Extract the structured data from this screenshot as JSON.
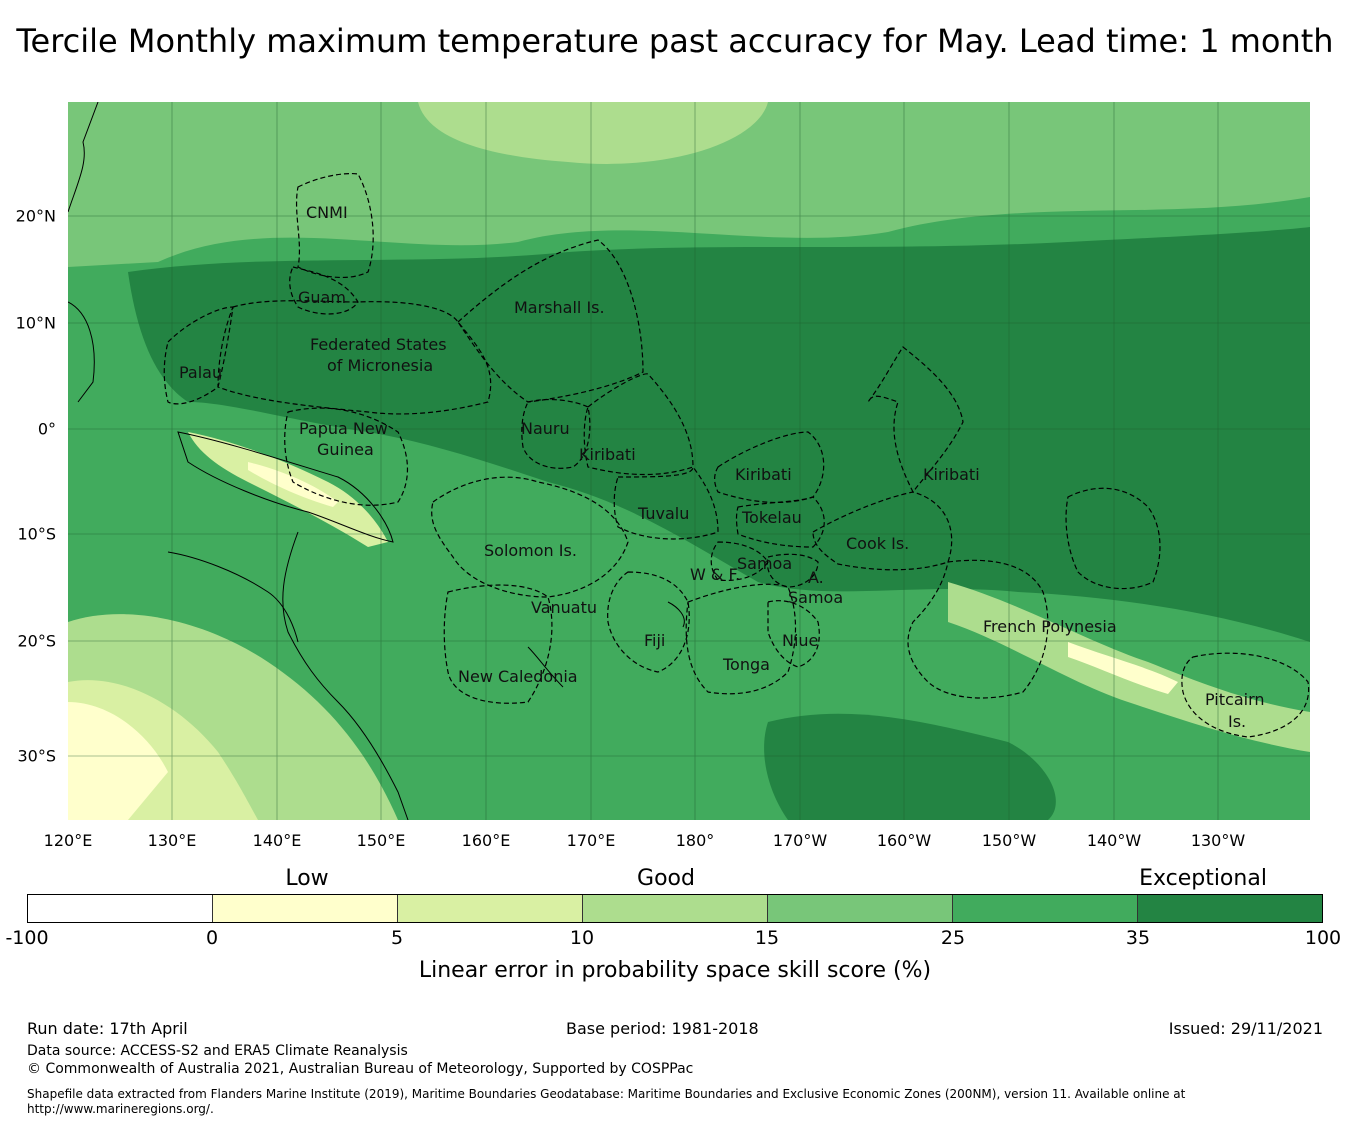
{
  "title": "Tercile Monthly maximum temperature past accuracy for May. Lead time: 1 month",
  "map": {
    "lat_labels": [
      "20°N",
      "10°N",
      "0°",
      "10°S",
      "20°S",
      "30°S"
    ],
    "lon_labels": [
      "120°E",
      "130°E",
      "140°E",
      "150°E",
      "160°E",
      "170°E",
      "180°",
      "170°W",
      "160°W",
      "150°W",
      "140°W",
      "130°W"
    ],
    "regions": [
      {
        "name": "cnmi",
        "text": "CNMI"
      },
      {
        "name": "guam",
        "text": "Guam"
      },
      {
        "name": "marshall",
        "text": "Marshall Is."
      },
      {
        "name": "fsm-1",
        "text": "Federated States"
      },
      {
        "name": "fsm-2",
        "text": "of Micronesia"
      },
      {
        "name": "palau",
        "text": "Palau"
      },
      {
        "name": "png-1",
        "text": "Papua New"
      },
      {
        "name": "png-2",
        "text": "Guinea"
      },
      {
        "name": "nauru",
        "text": "Nauru"
      },
      {
        "name": "kiribati-w",
        "text": "Kiribati"
      },
      {
        "name": "kiribati-c",
        "text": "Kiribati"
      },
      {
        "name": "kiribati-e",
        "text": "Kiribati"
      },
      {
        "name": "tuvalu",
        "text": "Tuvalu"
      },
      {
        "name": "tokelau",
        "text": "Tokelau"
      },
      {
        "name": "cook",
        "text": "Cook Is."
      },
      {
        "name": "solomon",
        "text": "Solomon Is."
      },
      {
        "name": "samoa",
        "text": "Samoa"
      },
      {
        "name": "wallis",
        "text": "W & F."
      },
      {
        "name": "am-samoa-1",
        "text": "A."
      },
      {
        "name": "am-samoa-2",
        "text": "Samoa"
      },
      {
        "name": "vanuatu",
        "text": "Vanuatu"
      },
      {
        "name": "fiji",
        "text": "Fiji"
      },
      {
        "name": "niue",
        "text": "Niue"
      },
      {
        "name": "tonga",
        "text": "Tonga"
      },
      {
        "name": "french-polynesia",
        "text": "French Polynesia"
      },
      {
        "name": "new-caledonia",
        "text": "New Caledonia"
      },
      {
        "name": "pitcairn-1",
        "text": "Pitcairn"
      },
      {
        "name": "pitcairn-2",
        "text": "Is."
      }
    ]
  },
  "legend": {
    "categories": [
      "Low",
      "Good",
      "Exceptional"
    ],
    "ticks": [
      "-100",
      "0",
      "5",
      "10",
      "15",
      "25",
      "35",
      "100"
    ],
    "colors": [
      "#ffffff",
      "#ffffcc",
      "#d9f0a3",
      "#addd8e",
      "#78c679",
      "#41ab5d",
      "#238443"
    ],
    "title": "Linear error in probability space skill score (%)"
  },
  "footer": {
    "run_date": "Run date: 17th April",
    "base_period": "Base period: 1981-2018",
    "issued": "Issued: 29/11/2021",
    "data_source": "Data source: ACCESS-S2 and ERA5 Climate Reanalysis",
    "copyright": "© Commonwealth of Australia 2021, Australian Bureau of Meteorology, Supported by COSPPac",
    "shapefile": "Shapefile data extracted from Flanders Marine Institute (2019), Maritime Boundaries Geodatabase: Maritime Boundaries and Exclusive Economic Zones (200NM), version 11. Available online at http://www.marineregions.org/."
  }
}
